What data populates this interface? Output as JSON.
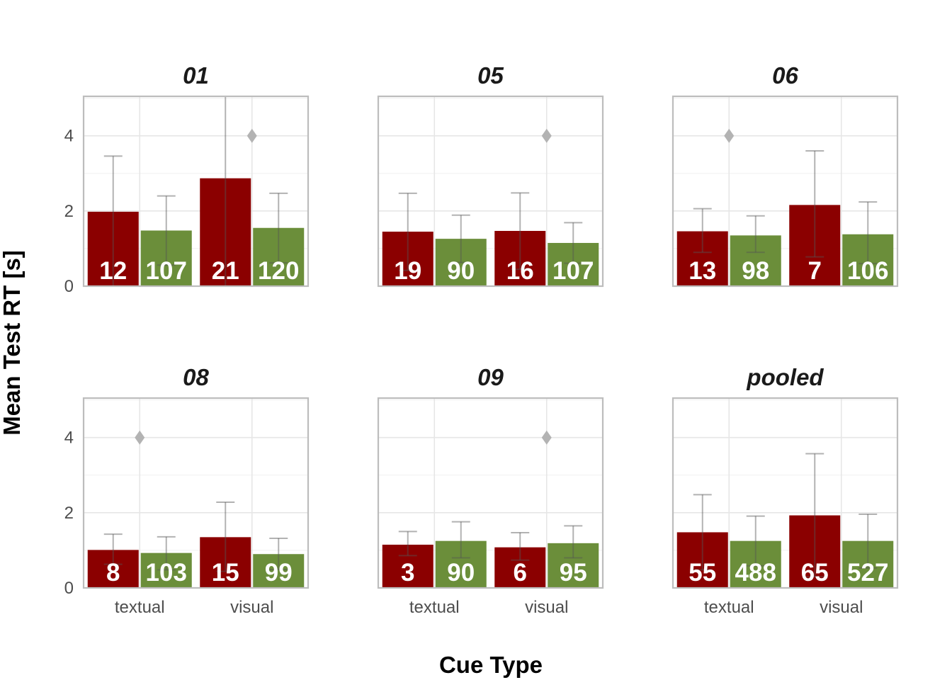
{
  "chart_data": {
    "type": "bar",
    "xlabel": "Cue Type",
    "ylabel": "Mean Test RT [s]",
    "categories": [
      "textual",
      "visual"
    ],
    "ylim": [
      0,
      5.05
    ],
    "yticks": [
      0,
      2,
      4
    ],
    "colors": {
      "series_a": "#8b0000",
      "series_b": "#6b8e3a",
      "marker": "#b3b3b3"
    },
    "facets": [
      {
        "title": "01",
        "bars": [
          {
            "category": "textual",
            "series": "a",
            "value": 1.98,
            "err_low": 0.0,
            "err_high": 3.46,
            "count": "12"
          },
          {
            "category": "textual",
            "series": "b",
            "value": 1.48,
            "err_low": 0.56,
            "err_high": 2.4,
            "count": "107"
          },
          {
            "category": "visual",
            "series": "a",
            "value": 2.87,
            "err_low": 0.0,
            "err_high": 5.05,
            "count": "21"
          },
          {
            "category": "visual",
            "series": "b",
            "value": 1.55,
            "err_low": 0.62,
            "err_high": 2.47,
            "count": "120"
          }
        ],
        "markers": [
          {
            "category": "visual",
            "value": 4.0
          }
        ]
      },
      {
        "title": "05",
        "bars": [
          {
            "category": "textual",
            "series": "a",
            "value": 1.45,
            "err_low": 0.42,
            "err_high": 2.47,
            "count": "19"
          },
          {
            "category": "textual",
            "series": "b",
            "value": 1.26,
            "err_low": 0.63,
            "err_high": 1.89,
            "count": "90"
          },
          {
            "category": "visual",
            "series": "a",
            "value": 1.47,
            "err_low": 0.45,
            "err_high": 2.48,
            "count": "16"
          },
          {
            "category": "visual",
            "series": "b",
            "value": 1.15,
            "err_low": 0.61,
            "err_high": 1.69,
            "count": "107"
          }
        ],
        "markers": [
          {
            "category": "visual",
            "value": 4.0
          }
        ]
      },
      {
        "title": "06",
        "bars": [
          {
            "category": "textual",
            "series": "a",
            "value": 1.46,
            "err_low": 0.9,
            "err_high": 2.06,
            "count": "13"
          },
          {
            "category": "textual",
            "series": "b",
            "value": 1.35,
            "err_low": 0.9,
            "err_high": 1.87,
            "count": "98"
          },
          {
            "category": "visual",
            "series": "a",
            "value": 2.16,
            "err_low": 0.78,
            "err_high": 3.6,
            "count": "7"
          },
          {
            "category": "visual",
            "series": "b",
            "value": 1.38,
            "err_low": 0.6,
            "err_high": 2.24,
            "count": "106"
          }
        ],
        "markers": [
          {
            "category": "textual",
            "value": 4.0
          }
        ]
      },
      {
        "title": "08",
        "bars": [
          {
            "category": "textual",
            "series": "a",
            "value": 1.01,
            "err_low": 0.63,
            "err_high": 1.43,
            "count": "8"
          },
          {
            "category": "textual",
            "series": "b",
            "value": 0.93,
            "err_low": 0.48,
            "err_high": 1.36,
            "count": "103"
          },
          {
            "category": "visual",
            "series": "a",
            "value": 1.35,
            "err_low": 0.44,
            "err_high": 2.28,
            "count": "15"
          },
          {
            "category": "visual",
            "series": "b",
            "value": 0.9,
            "err_low": 0.49,
            "err_high": 1.32,
            "count": "99"
          }
        ],
        "markers": [
          {
            "category": "textual",
            "value": 4.0
          }
        ]
      },
      {
        "title": "09",
        "bars": [
          {
            "category": "textual",
            "series": "a",
            "value": 1.15,
            "err_low": 0.86,
            "err_high": 1.5,
            "count": "3"
          },
          {
            "category": "textual",
            "series": "b",
            "value": 1.25,
            "err_low": 0.8,
            "err_high": 1.76,
            "count": "90"
          },
          {
            "category": "visual",
            "series": "a",
            "value": 1.08,
            "err_low": 0.74,
            "err_high": 1.47,
            "count": "6"
          },
          {
            "category": "visual",
            "series": "b",
            "value": 1.19,
            "err_low": 0.8,
            "err_high": 1.65,
            "count": "95"
          }
        ],
        "markers": [
          {
            "category": "visual",
            "value": 4.0
          }
        ]
      },
      {
        "title": "pooled",
        "bars": [
          {
            "category": "textual",
            "series": "a",
            "value": 1.48,
            "err_low": 0.48,
            "err_high": 2.48,
            "count": "55"
          },
          {
            "category": "textual",
            "series": "b",
            "value": 1.25,
            "err_low": 0.59,
            "err_high": 1.91,
            "count": "488"
          },
          {
            "category": "visual",
            "series": "a",
            "value": 1.93,
            "err_low": 0.3,
            "err_high": 3.57,
            "count": "65"
          },
          {
            "category": "visual",
            "series": "b",
            "value": 1.25,
            "err_low": 0.53,
            "err_high": 1.96,
            "count": "527"
          }
        ],
        "markers": []
      }
    ]
  }
}
